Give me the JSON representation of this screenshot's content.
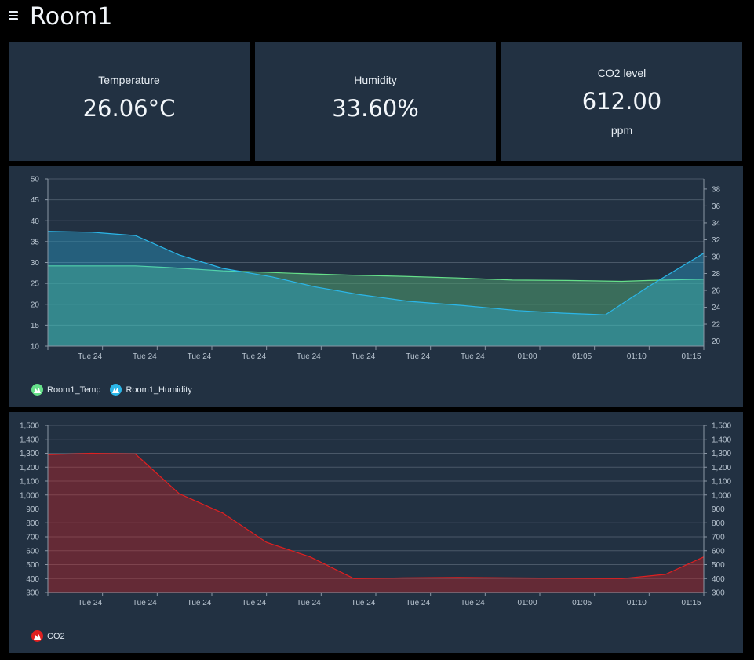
{
  "header": {
    "title": "Room1",
    "menu_icon": "hamburger-menu-icon"
  },
  "cards": {
    "temperature": {
      "label": "Temperature",
      "value": "26.06°C"
    },
    "humidity": {
      "label": "Humidity",
      "value": "33.60%"
    },
    "co2": {
      "label": "CO2 level",
      "value": "612.00",
      "unit": "ppm"
    }
  },
  "colors": {
    "panel_bg": "#223142",
    "temp": "#66e08a",
    "humidity": "#2bb6e8",
    "co2": "#e02020",
    "grid": "#4a5868"
  },
  "chart_data": [
    {
      "type": "area",
      "categories": [
        "",
        "Tue 24",
        "Tue 24",
        "Tue 24",
        "Tue 24",
        "Tue 24",
        "Tue 24",
        "Tue 24",
        "Tue 24",
        "01:00",
        "01:05",
        "01:10",
        "01:15"
      ],
      "x_ticks": [
        "Tue 24",
        "Tue 24",
        "Tue 24",
        "Tue 24",
        "Tue 24",
        "Tue 24",
        "Tue 24",
        "Tue 24",
        "01:00",
        "01:05",
        "01:10",
        "01:15"
      ],
      "y_left": {
        "ylim": [
          10,
          50
        ],
        "ticks": [
          "50",
          "45",
          "40",
          "35",
          "30",
          "25",
          "20",
          "15",
          "10"
        ]
      },
      "y_right": {
        "ylim": [
          19.4,
          39.2
        ],
        "ticks": [
          "38",
          "36",
          "34",
          "32",
          "30",
          "28",
          "26",
          "24",
          "22",
          "20"
        ]
      },
      "series": [
        {
          "name": "Room1_Temp",
          "axis": "left",
          "x": [
            0,
            0.8,
            1.6,
            2.2,
            3.2,
            3.9,
            4.5,
            5.5,
            6.5,
            7.5,
            8.5,
            9.5,
            10.5,
            11.0,
            12.0
          ],
          "values": [
            29.2,
            29.2,
            29.2,
            28.8,
            28.0,
            27.7,
            27.4,
            27.0,
            26.7,
            26.3,
            25.8,
            25.7,
            25.5,
            25.7,
            26.0
          ]
        },
        {
          "name": "Room1_Humidity",
          "axis": "right",
          "x": [
            0,
            0.8,
            1.6,
            2.4,
            3.2,
            4.1,
            4.9,
            5.7,
            6.6,
            7.6,
            8.6,
            9.4,
            10.2,
            11.0,
            12.0
          ],
          "values": [
            33.0,
            32.9,
            32.5,
            30.2,
            28.6,
            27.6,
            26.4,
            25.5,
            24.7,
            24.2,
            23.6,
            23.3,
            23.1,
            26.5,
            30.4
          ]
        }
      ]
    },
    {
      "type": "area",
      "categories": [
        "",
        "Tue 24",
        "Tue 24",
        "Tue 24",
        "Tue 24",
        "Tue 24",
        "Tue 24",
        "Tue 24",
        "Tue 24",
        "01:00",
        "01:05",
        "01:10",
        "01:15"
      ],
      "x_ticks": [
        "Tue 24",
        "Tue 24",
        "Tue 24",
        "Tue 24",
        "Tue 24",
        "Tue 24",
        "Tue 24",
        "Tue 24",
        "01:00",
        "01:05",
        "01:10",
        "01:15"
      ],
      "y_left": {
        "ylim": [
          300,
          1500
        ],
        "ticks": [
          "1,500",
          "1,400",
          "1,300",
          "1,200",
          "1,100",
          "1,000",
          "900",
          "800",
          "700",
          "600",
          "500",
          "400",
          "300"
        ]
      },
      "y_right": {
        "ylim": [
          300,
          1500
        ],
        "ticks": [
          "1,500",
          "1,400",
          "1,300",
          "1,200",
          "1,100",
          "1,000",
          "900",
          "800",
          "700",
          "600",
          "500",
          "400",
          "300"
        ]
      },
      "series": [
        {
          "name": "CO2",
          "axis": "left",
          "x": [
            0,
            0.8,
            1.6,
            2.4,
            3.2,
            4.0,
            4.8,
            5.6,
            6.5,
            7.5,
            8.5,
            9.5,
            10.5,
            11.3,
            12.0
          ],
          "values": [
            1290,
            1300,
            1295,
            1010,
            870,
            660,
            555,
            400,
            405,
            408,
            405,
            402,
            400,
            430,
            555
          ]
        }
      ]
    }
  ]
}
